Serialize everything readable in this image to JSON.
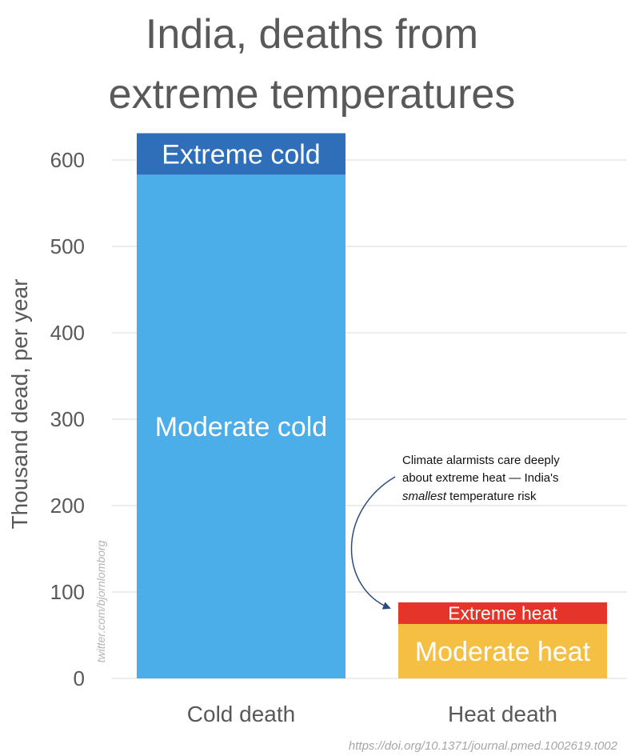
{
  "chart_data": {
    "type": "bar",
    "stacked": true,
    "title_lines": [
      "India, deaths from",
      "extreme temperatures"
    ],
    "ylabel": "Thousand dead, per year",
    "ylim": [
      0,
      650
    ],
    "yticks": [
      0,
      100,
      200,
      300,
      400,
      500,
      600
    ],
    "grid": true,
    "categories": [
      "Cold death",
      "Heat death"
    ],
    "segments": [
      [
        {
          "label": "Moderate cold",
          "value": 583,
          "color": "#4baee8"
        },
        {
          "label": "Extreme cold",
          "value": 48,
          "color": "#2f6fba"
        }
      ],
      [
        {
          "label": "Moderate heat",
          "value": 63,
          "color": "#f5bf44"
        },
        {
          "label": "Extreme heat",
          "value": 25,
          "color": "#e5352b"
        }
      ]
    ],
    "annotation": {
      "line1": "Climate alarmists care deeply",
      "line2": "about extreme heat — India's",
      "line3_italic": "smallest",
      "line3_rest": " temperature risk"
    },
    "watermark": "twitter.com/bjornlomborg",
    "source": "https://doi.org/10.1371/journal.pmed.1002619.t002"
  }
}
